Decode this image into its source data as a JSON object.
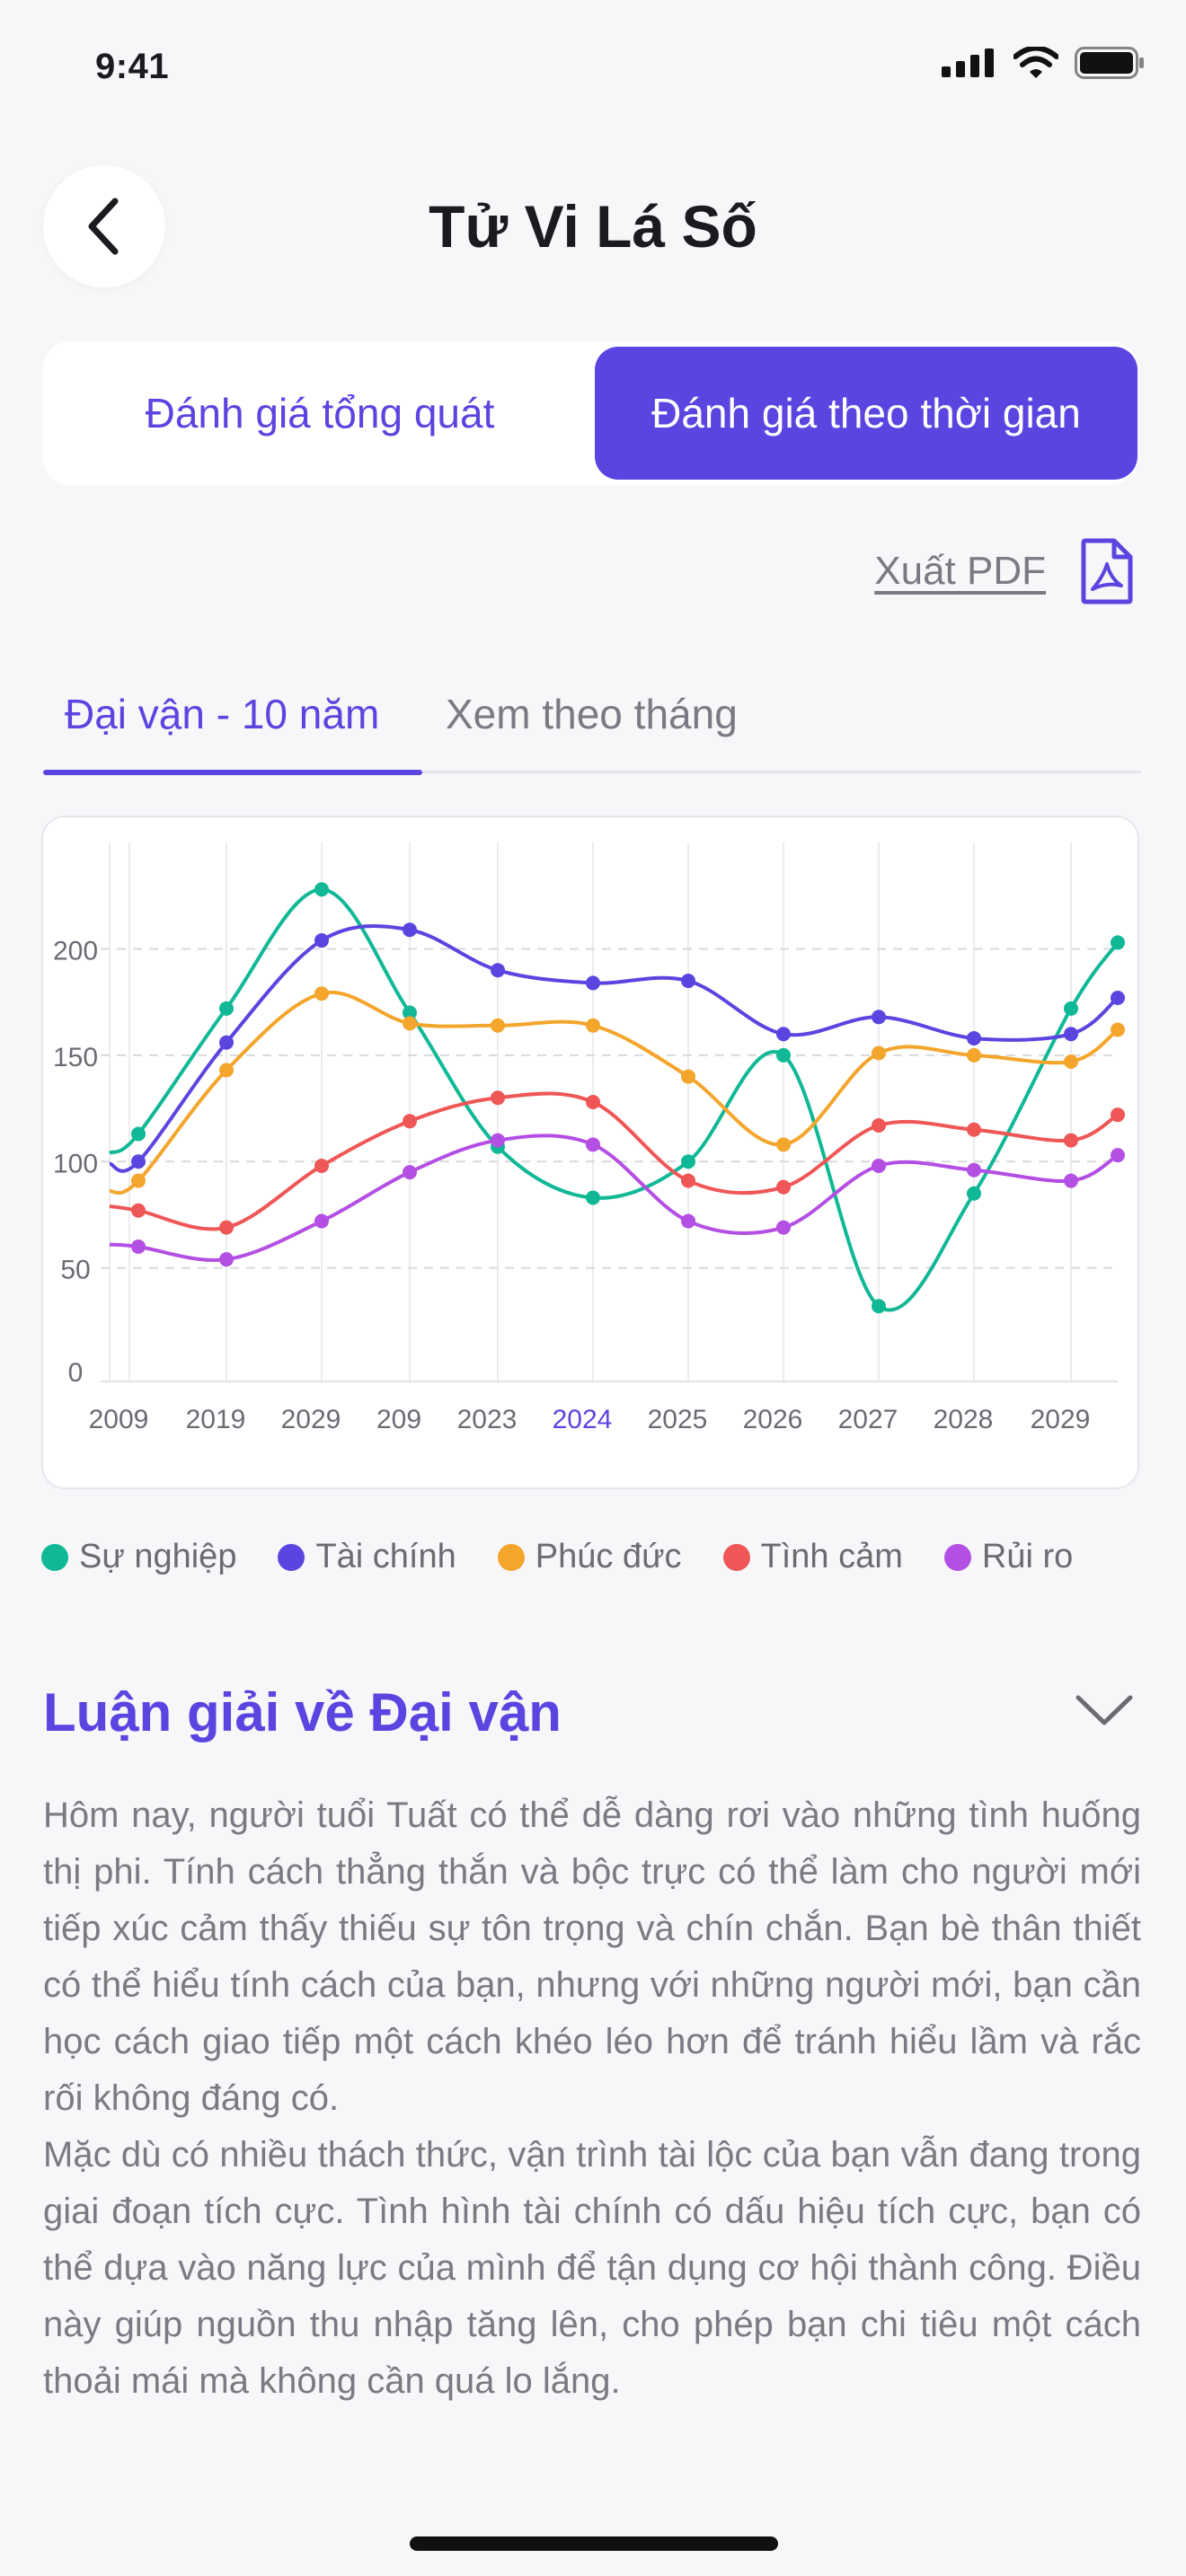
{
  "status_bar": {
    "time": "9:41"
  },
  "header": {
    "title": "Tử Vi Lá Số"
  },
  "segmented": {
    "left_label": "Đánh giá tổng quát",
    "right_label": "Đánh giá theo thời gian",
    "selected": "right"
  },
  "export": {
    "label": "Xuất PDF"
  },
  "tabs": [
    {
      "label": "Đại vận - 10 năm",
      "active": true
    },
    {
      "label": "Xem theo tháng",
      "active": false
    }
  ],
  "chart_data": {
    "type": "line",
    "categories": [
      "2009",
      "2019",
      "2029",
      "209",
      "2023",
      "2024",
      "2025",
      "2026",
      "2027",
      "2028",
      "2029"
    ],
    "highlight_category": "2024",
    "y_ticks": [
      0,
      50,
      100,
      150,
      200
    ],
    "ylim": [
      0,
      245
    ],
    "grid": true,
    "legend_position": "bottom",
    "series": [
      {
        "name": "Sự nghiệp",
        "color": "#10b896",
        "points": [
          [
            2009,
            104
          ],
          [
            2009.5,
            113
          ],
          [
            2019,
            172
          ],
          [
            2029,
            228
          ],
          [
            209,
            170
          ],
          [
            2023,
            107
          ],
          [
            2024,
            83
          ],
          [
            2025,
            100
          ],
          [
            2026,
            150
          ],
          [
            2027,
            32
          ],
          [
            2028,
            85
          ],
          [
            2029,
            172
          ],
          [
            2029.7,
            203
          ]
        ]
      },
      {
        "name": "Tài chính",
        "color": "#5b45e0",
        "points": [
          [
            2009,
            99
          ],
          [
            2009.5,
            100
          ],
          [
            2019,
            156
          ],
          [
            2029,
            204
          ],
          [
            209,
            209
          ],
          [
            2023,
            190
          ],
          [
            2024,
            184
          ],
          [
            2025,
            185
          ],
          [
            2026,
            160
          ],
          [
            2027,
            168
          ],
          [
            2028,
            158
          ],
          [
            2029,
            160
          ],
          [
            2029.7,
            177
          ]
        ]
      },
      {
        "name": "Phúc đức",
        "color": "#f4a52c",
        "points": [
          [
            2009,
            86
          ],
          [
            2009.5,
            91
          ],
          [
            2019,
            143
          ],
          [
            2029,
            179
          ],
          [
            209,
            165
          ],
          [
            2023,
            164
          ],
          [
            2024,
            164
          ],
          [
            2025,
            140
          ],
          [
            2026,
            108
          ],
          [
            2027,
            151
          ],
          [
            2028,
            150
          ],
          [
            2029,
            147
          ],
          [
            2029.7,
            162
          ]
        ]
      },
      {
        "name": "Tình cảm",
        "color": "#ef5656",
        "points": [
          [
            2009,
            79
          ],
          [
            2009.5,
            77
          ],
          [
            2019,
            69
          ],
          [
            2029,
            98
          ],
          [
            209,
            119
          ],
          [
            2023,
            130
          ],
          [
            2024,
            128
          ],
          [
            2025,
            91
          ],
          [
            2026,
            88
          ],
          [
            2027,
            117
          ],
          [
            2028,
            115
          ],
          [
            2029,
            110
          ],
          [
            2029.7,
            122
          ]
        ]
      },
      {
        "name": "Rủi ro",
        "color": "#b44fe3",
        "points": [
          [
            2009,
            61
          ],
          [
            2009.5,
            60
          ],
          [
            2019,
            54
          ],
          [
            2029,
            72
          ],
          [
            209,
            95
          ],
          [
            2023,
            110
          ],
          [
            2024,
            108
          ],
          [
            2025,
            72
          ],
          [
            2026,
            69
          ],
          [
            2027,
            98
          ],
          [
            2028,
            96
          ],
          [
            2029,
            91
          ],
          [
            2029.7,
            103
          ]
        ]
      }
    ]
  },
  "section": {
    "title": "Luận giải về Đại vận",
    "paragraphs": [
      "Hôm nay, người tuổi Tuất có thể dễ dàng rơi vào những tình huống thị phi. Tính cách thẳng thắn và bộc trực có thể làm cho người mới tiếp xúc cảm thấy thiếu sự tôn trọng và chín chắn. Bạn bè thân thiết có thể hiểu tính cách của bạn, nhưng với những người mới, bạn cần học cách giao tiếp một cách khéo léo hơn để tránh hiểu lầm và rắc rối không đáng có.",
      "Mặc dù có nhiều thách thức, vận trình tài lộc của bạn vẫn đang trong giai đoạn tích cực. Tình hình tài chính có dấu hiệu tích cực, bạn có thể dựa vào năng lực của mình để tận dụng cơ hội thành công. Điều này giúp nguồn thu nhập tăng lên, cho phép bạn chi tiêu một cách thoải mái mà không cần quá lo lắng."
    ]
  }
}
